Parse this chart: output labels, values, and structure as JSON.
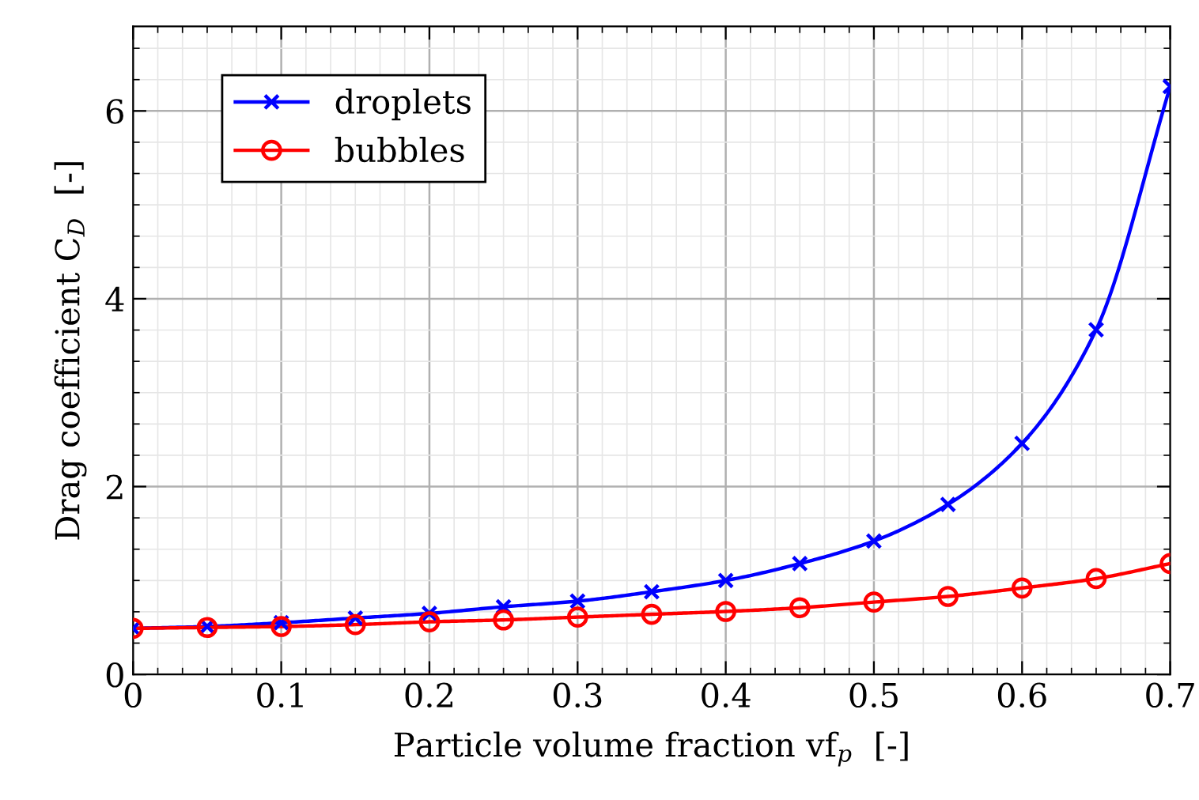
{
  "chart_data": {
    "type": "line",
    "xlabel": "Particle volume fraction vf$_{p}$  [-]",
    "ylabel": "Drag coefficient C$_{D}$  [-]",
    "x": [
      0,
      0.05,
      0.1,
      0.15,
      0.2,
      0.25,
      0.3,
      0.35,
      0.4,
      0.45,
      0.5,
      0.55,
      0.6,
      0.65,
      0.7
    ],
    "series": [
      {
        "name": "droplets",
        "color": "#0000ff",
        "marker": "cross",
        "values": [
          0.49,
          0.51,
          0.55,
          0.6,
          0.65,
          0.72,
          0.78,
          0.88,
          1.0,
          1.18,
          1.42,
          1.81,
          2.46,
          3.67,
          6.26
        ]
      },
      {
        "name": "bubbles",
        "color": "#ff0000",
        "marker": "circle",
        "values": [
          0.49,
          0.5,
          0.51,
          0.53,
          0.56,
          0.58,
          0.61,
          0.64,
          0.67,
          0.71,
          0.77,
          0.83,
          0.92,
          1.02,
          1.18
        ]
      }
    ],
    "xlim": [
      0,
      0.7
    ],
    "xticks": [
      0,
      0.1,
      0.2,
      0.3,
      0.4,
      0.5,
      0.6,
      0.7
    ],
    "ylim": [
      0,
      6.9
    ],
    "yticks": [
      0,
      2,
      4,
      6
    ],
    "grid": true,
    "legend": "top left",
    "line_style": "solid"
  }
}
